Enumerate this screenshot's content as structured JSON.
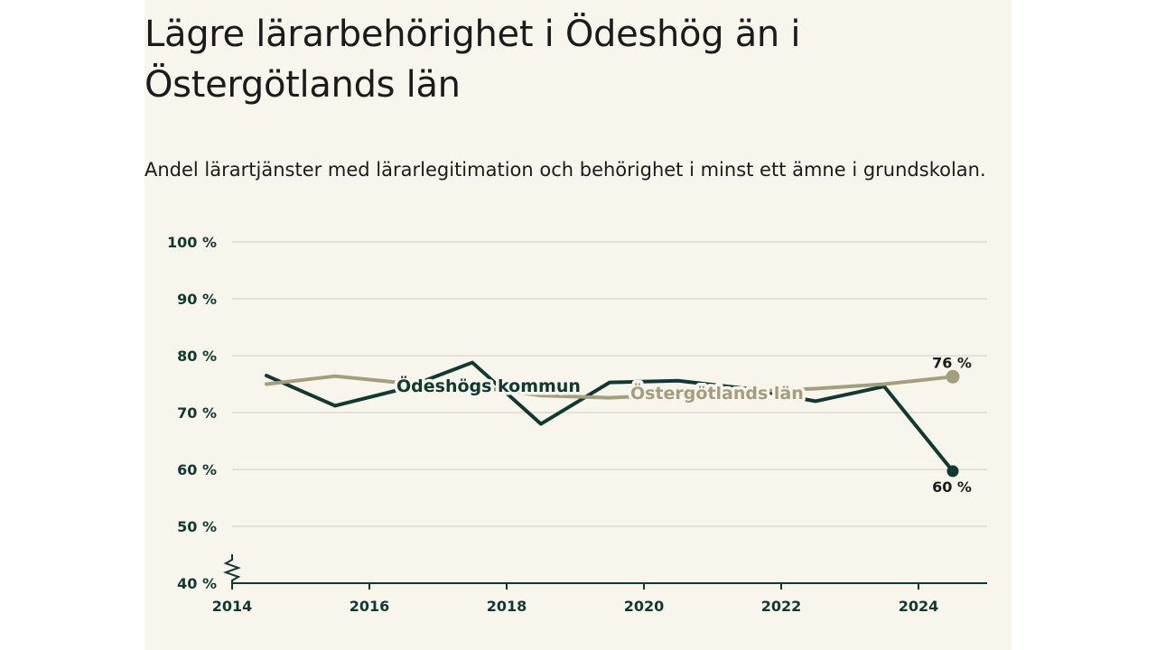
{
  "title": "Lägre lärarbehörighet i Ödeshög än i Östergötlands län",
  "subtitle": "Andel lärartjänster med lärarlegitimation och behörighet i minst ett ämne i grundskolan.",
  "colors": {
    "background": "#f7f5ec",
    "kommun": "#0f3a32",
    "lan": "#a39f7c",
    "grid": "#dcdad2",
    "axis": "#0f3a32"
  },
  "chart_data": {
    "type": "line",
    "x": [
      2014.5,
      2015.5,
      2016.5,
      2017.5,
      2018.5,
      2019.5,
      2020.5,
      2021.5,
      2022.5,
      2023.5,
      2024.5
    ],
    "series": [
      {
        "name": "Ödeshögs kommun",
        "values": [
          76.5,
          71.2,
          74.2,
          78.8,
          68.0,
          75.3,
          75.6,
          74.2,
          72.0,
          74.6,
          59.7
        ],
        "end_label": "60 %"
      },
      {
        "name": "Östergötlands län",
        "values": [
          75.0,
          76.4,
          75.2,
          74.6,
          73.0,
          72.6,
          73.2,
          73.7,
          74.2,
          75.0,
          76.3
        ],
        "end_label": "76 %"
      }
    ],
    "xlim": [
      2014,
      2025
    ],
    "ylim": [
      40,
      100
    ],
    "x_ticks": [
      2014,
      2016,
      2018,
      2020,
      2022,
      2024
    ],
    "x_tick_labels": [
      "2014",
      "2016",
      "2018",
      "2020",
      "2022",
      "2024"
    ],
    "y_ticks": [
      40,
      50,
      60,
      70,
      80,
      90,
      100
    ],
    "y_tick_labels": [
      "40 %",
      "50 %",
      "60 %",
      "70 %",
      "80 %",
      "90 %",
      "100 %"
    ],
    "grid": true,
    "axis_break": true
  }
}
